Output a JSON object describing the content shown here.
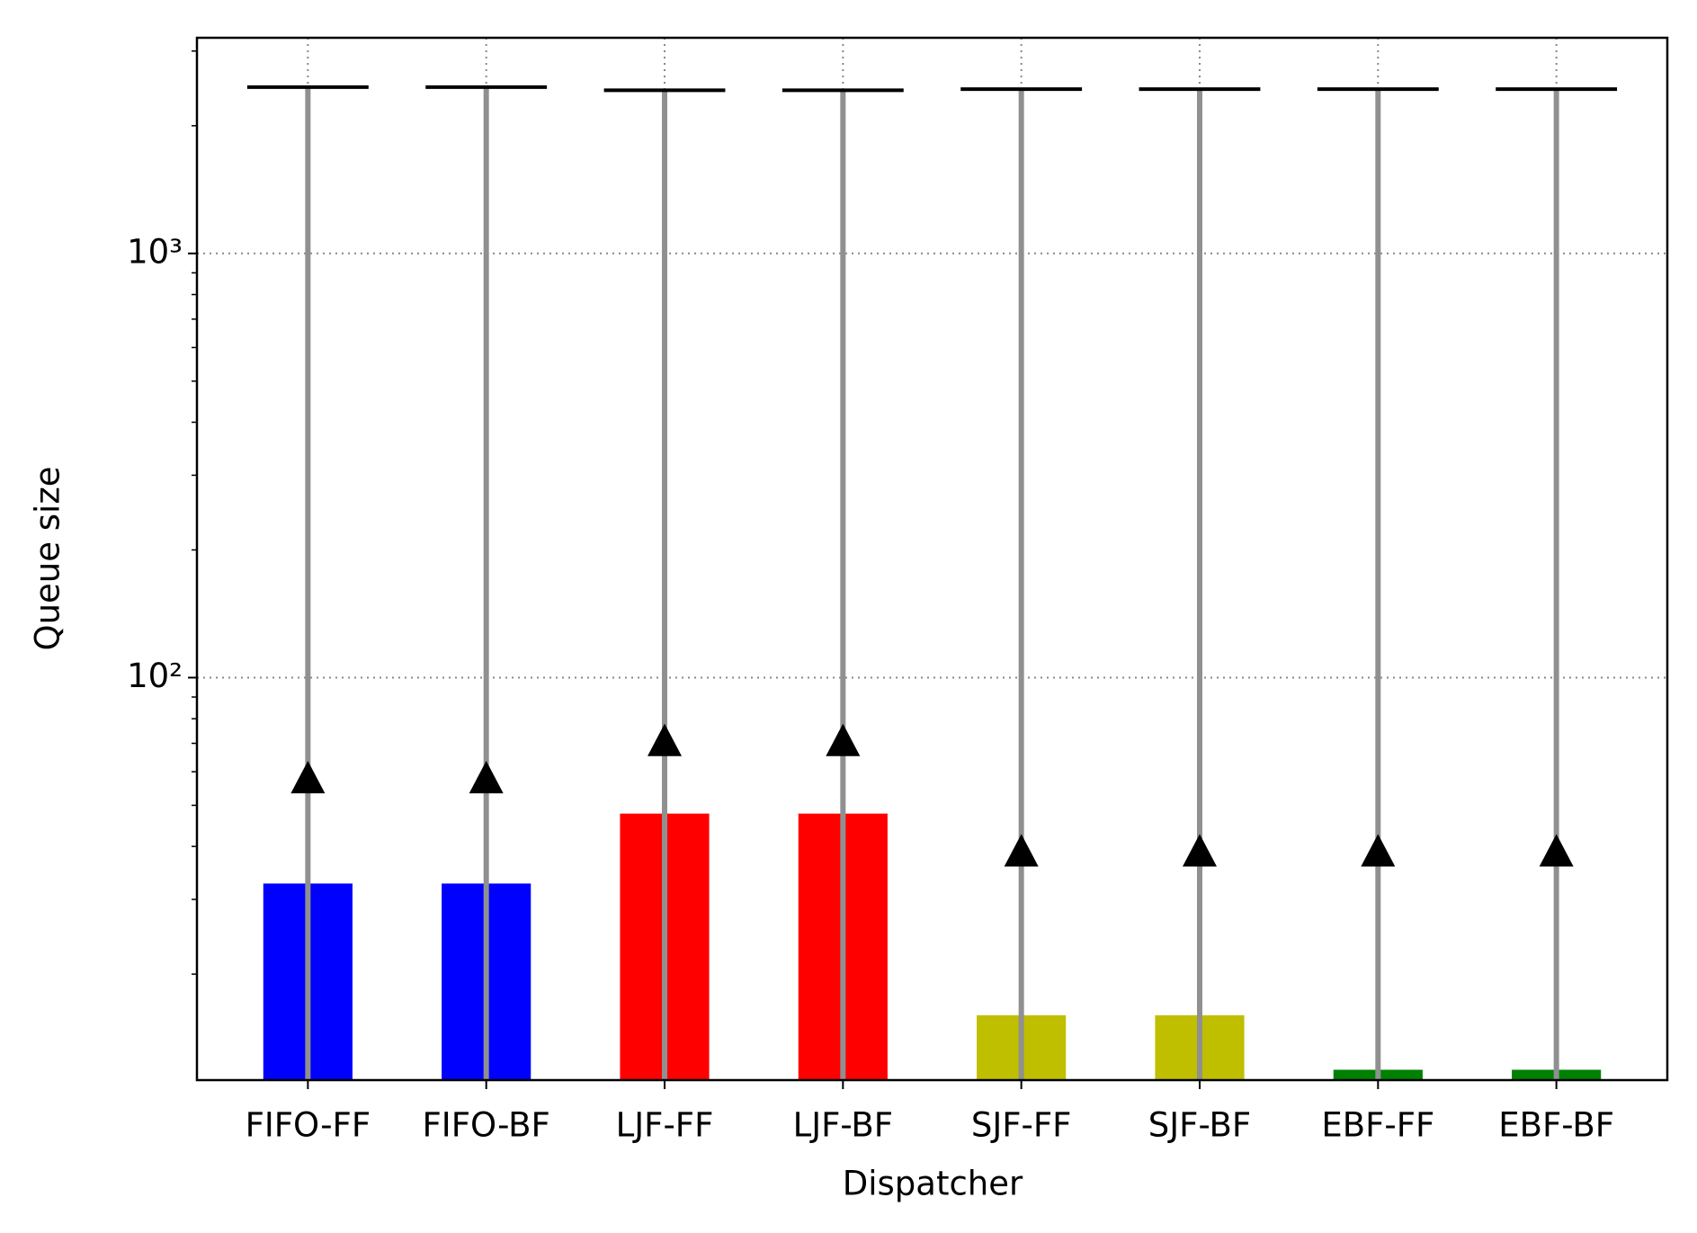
{
  "chart_data": {
    "type": "bar",
    "xlabel": "Dispatcher",
    "ylabel": "Queue size",
    "categories": [
      "FIFO-FF",
      "FIFO-BF",
      "LJF-FF",
      "LJF-BF",
      "SJF-FF",
      "SJF-BF",
      "EBF-FF",
      "EBF-BF"
    ],
    "values": [
      32.7,
      32.7,
      47.8,
      47.8,
      16,
      16,
      11.9,
      11.9
    ],
    "colors": [
      "#0000ff",
      "#0000ff",
      "#ff0000",
      "#ff0000",
      "#bfbf00",
      "#bfbf00",
      "#008000",
      "#008000"
    ],
    "mean_values": [
      58,
      58,
      71,
      71,
      39,
      39,
      39,
      39
    ],
    "max_values": [
      2466,
      2466,
      2425,
      2425,
      2440,
      2440,
      2440,
      2440
    ],
    "log_scale": true,
    "ylim": [
      11.25,
      3224
    ],
    "yticks": [
      {
        "value": 100,
        "label": "10²"
      },
      {
        "value": 1000,
        "label": "10³"
      }
    ],
    "minor_yticks": [
      20,
      30,
      40,
      50,
      60,
      70,
      80,
      90,
      200,
      300,
      400,
      500,
      600,
      700,
      800,
      900,
      2000,
      3000
    ],
    "grid": true
  }
}
